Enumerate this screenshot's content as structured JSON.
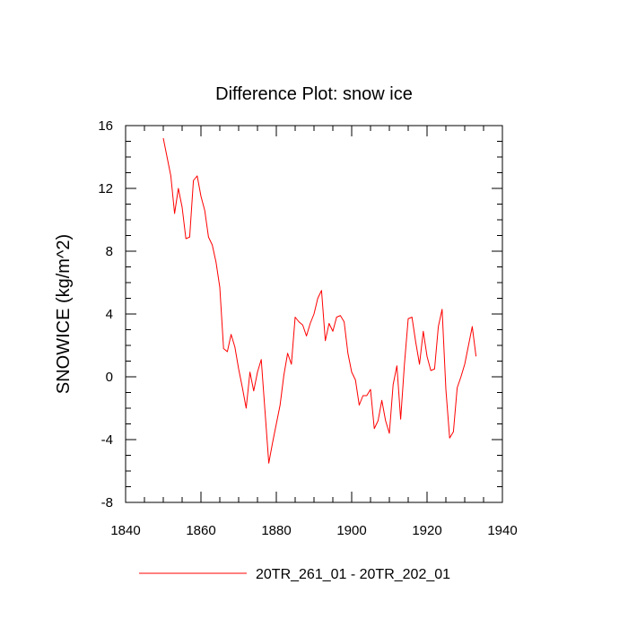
{
  "chart_data": {
    "type": "line",
    "title": "Difference Plot: snow ice",
    "xlabel": "",
    "ylabel": "SNOWICE  (kg/m^2)",
    "xlim": [
      1840,
      1940
    ],
    "ylim": [
      -8,
      16
    ],
    "xticks": [
      "1840",
      "1860",
      "1880",
      "1900",
      "1920",
      "1940"
    ],
    "yticks": [
      "-8",
      "-4",
      "0",
      "4",
      "8",
      "12",
      "16"
    ],
    "grid": false,
    "legend": "bottom",
    "series": [
      {
        "name": "20TR_261_01 - 20TR_202_01",
        "color": "#ff0000",
        "x": [
          1850,
          1851,
          1852,
          1853,
          1854,
          1855,
          1856,
          1857,
          1858,
          1859,
          1860,
          1861,
          1862,
          1863,
          1864,
          1865,
          1866,
          1867,
          1868,
          1869,
          1870,
          1871,
          1872,
          1873,
          1874,
          1875,
          1876,
          1877,
          1878,
          1879,
          1880,
          1881,
          1882,
          1883,
          1884,
          1885,
          1886,
          1887,
          1888,
          1889,
          1890,
          1891,
          1892,
          1893,
          1894,
          1895,
          1896,
          1897,
          1898,
          1899,
          1900,
          1901,
          1902,
          1903,
          1904,
          1905,
          1906,
          1907,
          1908,
          1909,
          1910,
          1911,
          1912,
          1913,
          1914,
          1915,
          1916,
          1917,
          1918,
          1919,
          1920,
          1921,
          1922,
          1923,
          1924,
          1925,
          1926,
          1927,
          1928,
          1929,
          1930,
          1931,
          1932,
          1933
        ],
        "values": [
          15.2,
          14.0,
          12.8,
          10.4,
          12.0,
          10.8,
          8.8,
          8.9,
          12.5,
          12.8,
          11.5,
          10.6,
          8.9,
          8.4,
          7.3,
          5.7,
          1.8,
          1.6,
          2.7,
          1.9,
          0.5,
          -0.7,
          -2.0,
          0.3,
          -0.9,
          0.3,
          1.1,
          -2.2,
          -5.5,
          -4.2,
          -3.0,
          -1.8,
          0.1,
          1.5,
          0.8,
          3.8,
          3.5,
          3.3,
          2.6,
          3.4,
          4.0,
          5.0,
          5.5,
          2.3,
          3.4,
          2.9,
          3.8,
          3.9,
          3.5,
          1.5,
          0.3,
          -0.2,
          -1.8,
          -1.2,
          -1.2,
          -0.8,
          -3.3,
          -2.8,
          -1.5,
          -2.8,
          -3.6,
          -0.5,
          0.7,
          -2.7,
          0.8,
          3.7,
          3.8,
          2.2,
          0.8,
          2.9,
          1.3,
          0.4,
          0.5,
          3.2,
          4.3,
          -0.8,
          -3.9,
          -3.5,
          -0.7,
          0.0,
          0.8,
          2.0,
          3.2,
          1.3
        ]
      }
    ]
  }
}
